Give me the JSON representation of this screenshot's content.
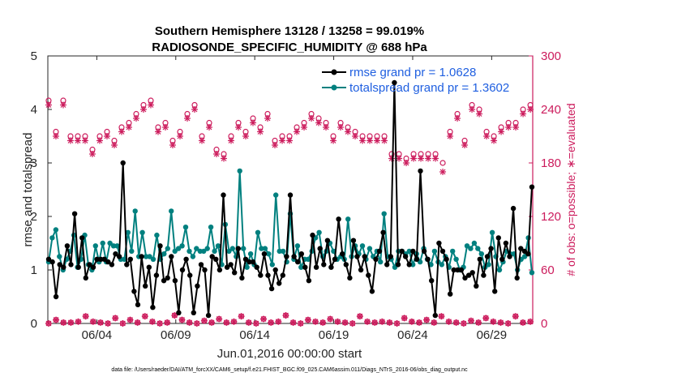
{
  "chart_data": {
    "type": "line",
    "title_line1": "Southern Hemisphere 13128 / 13258 = 99.019%",
    "title_line2": "RADIOSONDE_SPECIFIC_HUMIDITY @ 688 hPa",
    "xlabel": "Jun.01,2016 00:00:00 start",
    "ylabel": "rmse and totalspread",
    "ylabel_right": "# of obs: o=possible; ∗=evaluated",
    "xlim": [
      0.9,
      31.6
    ],
    "ylim": [
      0,
      5
    ],
    "ylim_right": [
      0,
      300
    ],
    "x_ticks": [
      {
        "x": 4,
        "label": "06/04"
      },
      {
        "x": 9,
        "label": "06/09"
      },
      {
        "x": 14,
        "label": "06/14"
      },
      {
        "x": 19,
        "label": "06/19"
      },
      {
        "x": 24,
        "label": "06/24"
      },
      {
        "x": 29,
        "label": "06/29"
      }
    ],
    "y_ticks": [
      "0",
      "1",
      "2",
      "3",
      "4",
      "5"
    ],
    "y_ticks_right": [
      "0",
      "60",
      "120",
      "180",
      "240",
      "300"
    ],
    "colors": {
      "rmse": "#000000",
      "spread": "#00807f",
      "obs": "#cc1b5c",
      "legend_text": "#1f5fe0"
    },
    "series": [
      {
        "name": "rmse grand pr = 1.0628",
        "values": [
          1.2,
          1.15,
          0.5,
          1.1,
          1.05,
          1.45,
          1.1,
          2.05,
          1.05,
          1.6,
          0.85,
          1.1,
          1.05,
          1.2,
          1.2,
          1.2,
          1.15,
          1.1,
          1.3,
          1.25,
          3.0,
          1.1,
          1.2,
          0.6,
          0.35,
          1.25,
          0.7,
          1.05,
          0.3,
          0.9,
          1.45,
          0.8,
          0.85,
          1.25,
          0.8,
          0.2,
          1.0,
          1.2,
          0.9,
          0.2,
          0.7,
          1.1,
          1.0,
          0.15,
          1.25,
          1.2,
          1.0,
          2.4,
          1.05,
          1.1,
          0.95,
          1.4,
          0.85,
          1.2,
          1.15,
          1.15,
          1.05,
          0.9,
          1.3,
          0.9,
          0.65,
          1.0,
          0.75,
          0.9,
          1.25,
          2.4,
          1.25,
          1.15,
          1.3,
          1.05,
          0.8,
          1.65,
          1.05,
          1.4,
          1.1,
          1.55,
          1.05,
          1.2,
          1.95,
          1.3,
          1.1,
          0.85,
          1.55,
          1.25,
          1.0,
          1.25,
          0.9,
          0.6,
          1.2,
          1.35,
          1.7,
          1.1,
          1.25,
          4.5,
          1.1,
          1.35,
          1.25,
          1.1,
          1.35,
          1.2,
          2.85,
          1.35,
          1.2,
          0.8,
          0.15,
          1.5,
          1.35,
          1.2,
          0.55,
          1.0,
          1.0,
          1.0,
          0.85,
          0.9,
          0.95,
          0.7,
          1.2,
          0.9,
          1.25,
          1.4,
          0.6,
          1.6,
          1.2,
          1.5,
          1.25,
          2.15,
          0.85,
          1.4,
          1.35,
          1.3,
          2.55
        ]
      },
      {
        "name": "totalspread grand pr = 1.3602",
        "values": [
          1.15,
          1.6,
          1.75,
          1.25,
          1.0,
          1.2,
          1.35,
          1.65,
          1.05,
          1.2,
          1.65,
          1.1,
          1.0,
          1.45,
          1.15,
          1.5,
          1.15,
          1.5,
          1.45,
          1.45,
          1.2,
          1.2,
          1.7,
          1.35,
          2.1,
          1.25,
          1.7,
          1.25,
          1.25,
          1.2,
          1.65,
          1.2,
          1.3,
          1.4,
          2.1,
          1.35,
          1.4,
          1.45,
          1.8,
          1.35,
          1.25,
          1.4,
          1.35,
          1.35,
          1.4,
          1.8,
          1.35,
          1.45,
          1.1,
          1.85,
          1.35,
          1.4,
          1.25,
          2.85,
          1.4,
          1.05,
          1.3,
          1.1,
          1.7,
          1.4,
          1.4,
          1.3,
          1.1,
          2.4,
          1.35,
          1.35,
          1.15,
          2.05,
          1.2,
          1.45,
          1.05,
          1.2,
          1.2,
          1.35,
          1.6,
          1.7,
          1.25,
          1.35,
          1.5,
          1.35,
          1.2,
          1.25,
          1.2,
          1.95,
          1.25,
          1.45,
          1.3,
          1.45,
          1.2,
          1.4,
          1.25,
          1.35,
          1.15,
          2.05,
          1.25,
          1.2,
          1.05,
          1.35,
          1.35,
          1.3,
          1.35,
          1.1,
          1.3,
          1.15,
          1.4,
          1.2,
          1.1,
          1.35,
          1.15,
          1.1,
          1.25,
          1.05,
          1.35,
          1.2,
          1.0,
          1.05,
          1.45,
          1.4,
          1.5,
          1.4,
          1.3,
          1.05,
          1.1,
          1.7,
          1.25,
          1.0,
          1.15,
          1.35,
          1.3,
          1.3,
          1.0,
          1.2,
          1.25,
          1.6,
          0.95
        ]
      }
    ],
    "obs_possible": [
      250,
      215,
      250,
      210,
      210,
      210,
      195,
      210,
      215,
      205,
      220,
      225,
      235,
      245,
      250,
      220,
      225,
      205,
      215,
      235,
      245,
      210,
      225,
      195,
      190,
      210,
      225,
      215,
      230,
      220,
      235,
      205,
      210,
      210,
      220,
      225,
      235,
      230,
      225,
      210,
      225,
      220,
      215,
      210,
      210,
      210,
      210,
      190,
      190,
      185,
      190,
      190,
      190,
      190,
      180,
      215,
      235,
      205,
      245,
      240,
      215,
      210,
      220,
      225,
      225,
      240,
      245
    ],
    "obs_evaluated": [
      245,
      210,
      245,
      205,
      205,
      205,
      190,
      205,
      210,
      200,
      215,
      220,
      230,
      240,
      245,
      215,
      220,
      200,
      210,
      230,
      240,
      205,
      220,
      190,
      185,
      205,
      220,
      210,
      225,
      215,
      230,
      200,
      205,
      205,
      215,
      220,
      230,
      225,
      220,
      205,
      220,
      215,
      210,
      205,
      205,
      205,
      205,
      185,
      185,
      180,
      185,
      185,
      185,
      185,
      170,
      210,
      230,
      200,
      240,
      235,
      210,
      205,
      215,
      220,
      220,
      235,
      240
    ],
    "obs_bottom_possible": [
      0,
      4,
      1,
      1,
      2,
      8,
      2,
      1,
      0,
      6,
      0,
      4,
      1,
      8,
      2,
      0,
      1,
      9,
      4,
      1,
      0,
      3,
      1,
      5,
      1,
      2,
      8,
      1,
      0,
      5,
      1,
      2,
      9,
      1,
      0,
      4,
      2,
      1,
      5,
      2,
      1,
      0,
      8,
      2,
      1,
      2,
      1,
      0,
      6,
      2,
      1,
      4,
      1,
      8,
      2,
      1,
      0,
      3,
      1,
      6,
      2,
      1,
      0,
      8,
      1,
      2
    ],
    "legend": [
      {
        "label": "rmse grand pr = 1.0628"
      },
      {
        "label": "totalspread grand pr = 1.3602"
      }
    ],
    "legend_position": "top-right",
    "footer": "data file: /Users/raeder/DAI/ATM_forcXX/CAM6_setup/f.e21.FHIST_BGC.f09_025.CAM6assim.011/Diags_NTrS_2016-06/obs_diag_output.nc"
  }
}
